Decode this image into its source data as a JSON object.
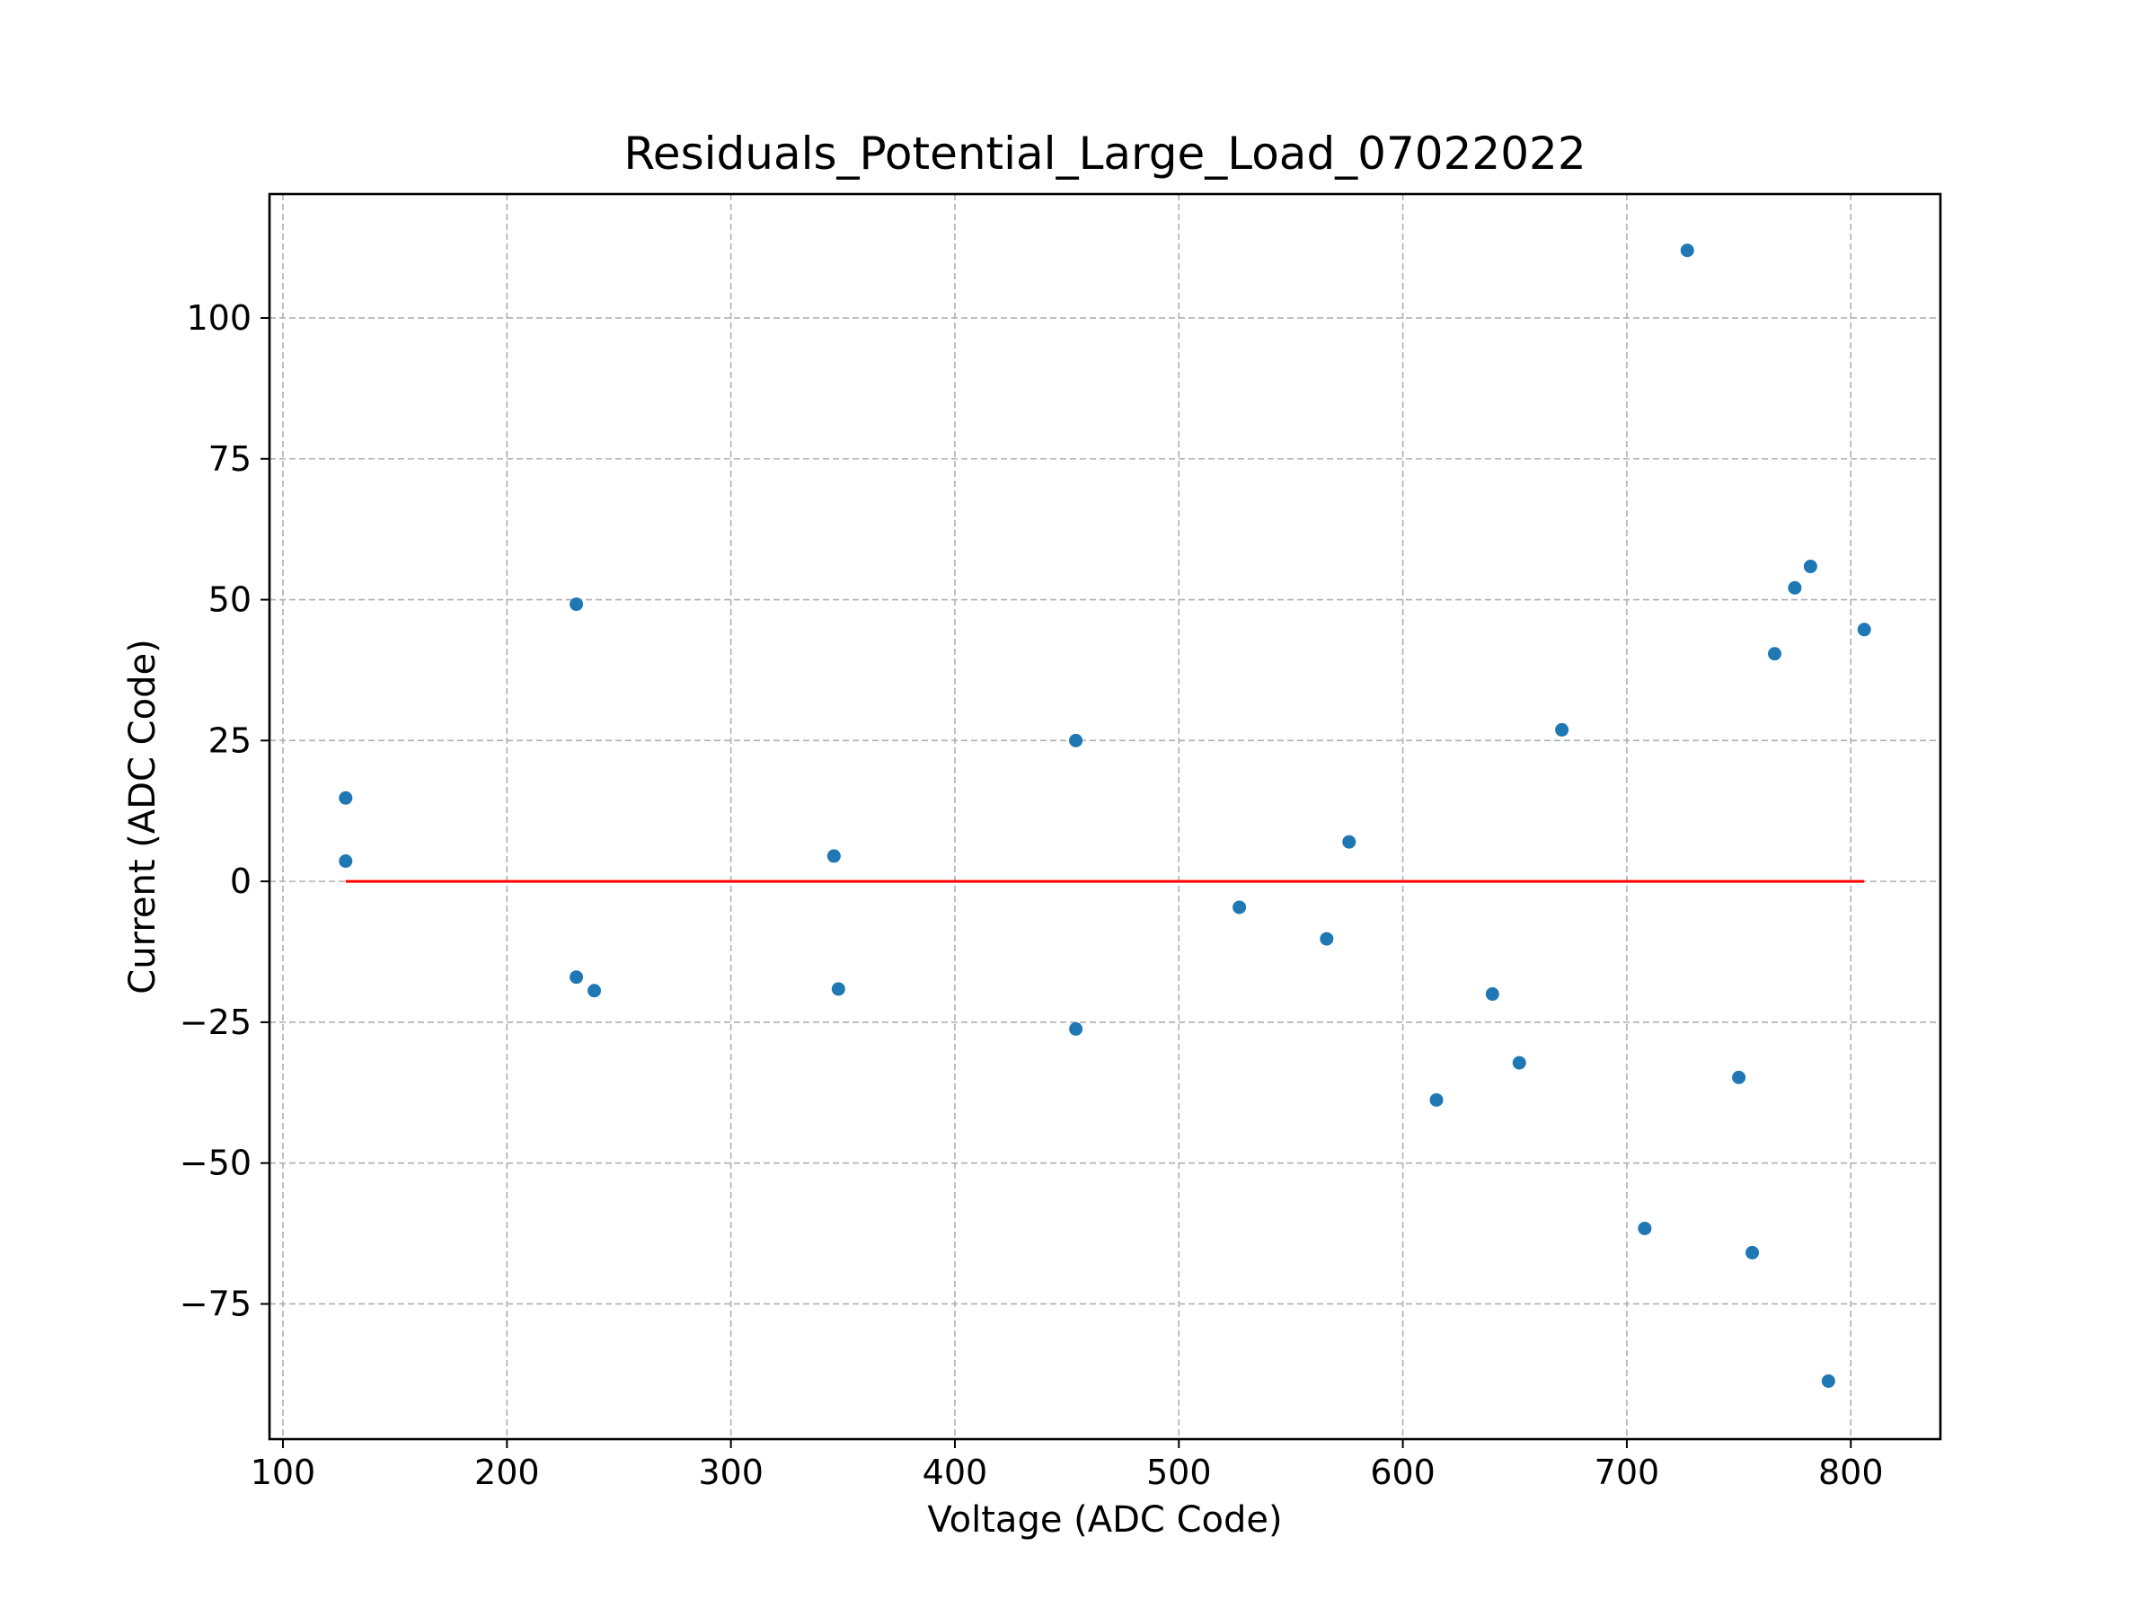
{
  "chart_data": {
    "type": "scatter",
    "title": "Residuals_Potential_Large_Load_07022022",
    "xlabel": "Voltage (ADC Code)",
    "ylabel": "Current (ADC Code)",
    "xlim": [
      94,
      840
    ],
    "ylim": [
      -99,
      122
    ],
    "xticks": [
      100,
      200,
      300,
      400,
      500,
      600,
      700,
      800
    ],
    "xtick_labels": [
      "100",
      "200",
      "300",
      "400",
      "500",
      "600",
      "700",
      "800"
    ],
    "yticks": [
      -75,
      -50,
      -25,
      0,
      25,
      50,
      75,
      100
    ],
    "ytick_labels": [
      "−75",
      "−50",
      "−25",
      "0",
      "25",
      "50",
      "75",
      "100"
    ],
    "grid": true,
    "point_color": "#1f77b4",
    "series": [
      {
        "x": [
          128,
          128,
          231,
          231,
          239,
          346,
          348,
          454,
          454,
          527,
          566,
          576,
          615,
          640,
          652,
          671,
          708,
          727,
          750,
          756,
          766,
          775,
          782,
          790,
          806
        ],
        "y": [
          14.8,
          3.6,
          49.2,
          -17.0,
          -19.4,
          4.5,
          -19.1,
          25.0,
          -26.2,
          -4.6,
          -10.2,
          7.0,
          -38.8,
          -20.0,
          -32.2,
          26.9,
          -61.6,
          112.0,
          -34.8,
          -65.9,
          40.4,
          52.1,
          55.9,
          -88.7,
          44.7
        ]
      }
    ],
    "reference_line": {
      "y": 0,
      "x_from": 128,
      "x_to": 806,
      "color": "#ff0000"
    }
  }
}
